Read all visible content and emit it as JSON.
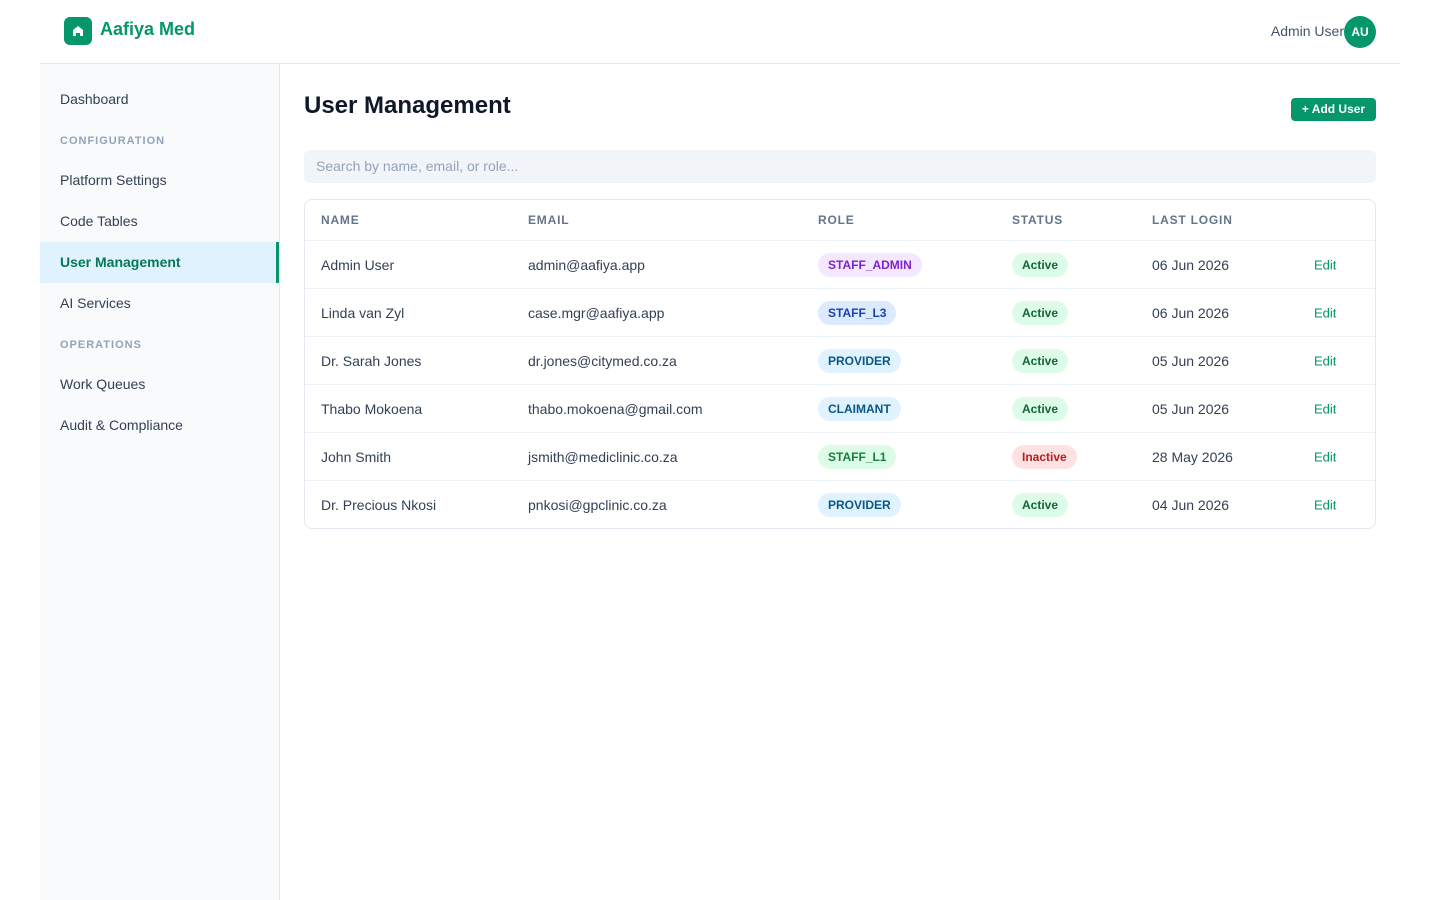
{
  "header": {
    "brand": "Aafiya Med",
    "user_name": "Admin User",
    "avatar_initials": "AU"
  },
  "sidebar": {
    "sections": [
      {
        "items": [
          {
            "label": "Dashboard",
            "active": false
          }
        ]
      },
      {
        "label": "CONFIGURATION",
        "items": [
          {
            "label": "Platform Settings",
            "active": false
          },
          {
            "label": "Code Tables",
            "active": false
          },
          {
            "label": "User Management",
            "active": true
          },
          {
            "label": "AI Services",
            "active": false
          }
        ]
      },
      {
        "label": "OPERATIONS",
        "items": [
          {
            "label": "Work Queues",
            "active": false
          },
          {
            "label": "Audit & Compliance",
            "active": false
          }
        ]
      }
    ]
  },
  "page": {
    "title": "User Management",
    "add_button": "+ Add User",
    "search_placeholder": "Search by name, email, or role..."
  },
  "table": {
    "columns": [
      "NAME",
      "EMAIL",
      "ROLE",
      "STATUS",
      "LAST LOGIN"
    ],
    "rows": [
      {
        "name": "Admin User",
        "email": "admin@aafiya.app",
        "role": "STAFF_ADMIN",
        "role_style": "purple",
        "status": "Active",
        "status_style": "active",
        "last_login": "06 Jun 2026",
        "action": "Edit"
      },
      {
        "name": "Linda van Zyl",
        "email": "case.mgr@aafiya.app",
        "role": "STAFF_L3",
        "role_style": "blue",
        "status": "Active",
        "status_style": "active",
        "last_login": "06 Jun 2026",
        "action": "Edit"
      },
      {
        "name": "Dr. Sarah Jones",
        "email": "dr.jones@citymed.co.za",
        "role": "PROVIDER",
        "role_style": "sky",
        "status": "Active",
        "status_style": "active",
        "last_login": "05 Jun 2026",
        "action": "Edit"
      },
      {
        "name": "Thabo Mokoena",
        "email": "thabo.mokoena@gmail.com",
        "role": "CLAIMANT",
        "role_style": "sky",
        "status": "Active",
        "status_style": "active",
        "last_login": "05 Jun 2026",
        "action": "Edit"
      },
      {
        "name": "John Smith",
        "email": "jsmith@mediclinic.co.za",
        "role": "STAFF_L1",
        "role_style": "green",
        "status": "Inactive",
        "status_style": "inactive",
        "last_login": "28 May 2026",
        "action": "Edit"
      },
      {
        "name": "Dr. Precious Nkosi",
        "email": "pnkosi@gpclinic.co.za",
        "role": "PROVIDER",
        "role_style": "sky",
        "status": "Active",
        "status_style": "active",
        "last_login": "04 Jun 2026",
        "action": "Edit"
      }
    ]
  }
}
